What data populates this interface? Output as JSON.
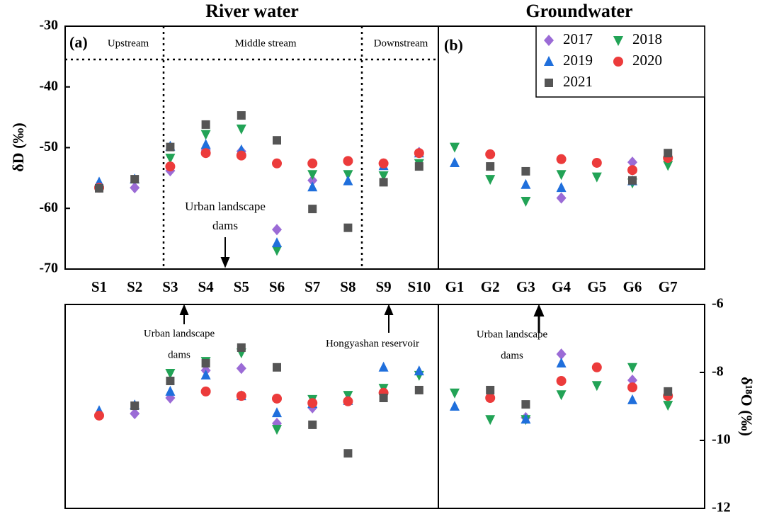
{
  "chart_data": [
    {
      "type": "scatter",
      "titles": [
        "River water",
        "Groundwater"
      ],
      "panel_labels": [
        "(a)",
        "(b)"
      ],
      "regions": [
        "Upstream",
        "Middle stream",
        "Downstream"
      ],
      "annotations": [
        [
          "Urban landscape",
          "dams"
        ]
      ],
      "ylabel": "δD (‰)",
      "categories": [
        "S1",
        "S2",
        "S3",
        "S4",
        "S5",
        "S6",
        "S7",
        "S8",
        "S9",
        "S10",
        "G1",
        "G2",
        "G3",
        "G4",
        "G5",
        "G6",
        "G7"
      ],
      "ylim": [
        -70,
        -30
      ],
      "yticks": [
        -70,
        -60,
        -50,
        -40,
        -30
      ],
      "grid": false,
      "legend": "upper right",
      "series": [
        {
          "name": "2017",
          "color": "#9b6bd6",
          "marker": "diamond",
          "values": [
            null,
            -56.6,
            -53.8,
            -50.4,
            -50.6,
            -63.5,
            -55.4,
            null,
            -52.7,
            -50.8,
            null,
            null,
            null,
            -58.3,
            null,
            -52.4,
            -51.6
          ]
        },
        {
          "name": "2018",
          "color": "#22a356",
          "marker": "triangle-down",
          "values": [
            null,
            null,
            -51.7,
            -47.8,
            -46.9,
            -66.9,
            -54.4,
            -54.4,
            -54.6,
            -52.6,
            -49.9,
            -55.2,
            -58.8,
            -54.4,
            -54.8,
            -55.8,
            -52.9
          ]
        },
        {
          "name": "2019",
          "color": "#1f6fdc",
          "marker": "triangle-up",
          "values": [
            -55.7,
            -55.2,
            -49.8,
            -49.5,
            -50.4,
            -65.7,
            -56.5,
            -55.5,
            -53.0,
            -50.9,
            -52.5,
            null,
            -56.1,
            -56.6,
            null,
            -55.5,
            null
          ]
        },
        {
          "name": "2020",
          "color": "#ec3b3b",
          "marker": "circle",
          "values": [
            -56.6,
            null,
            -53.1,
            -50.9,
            -51.3,
            -52.6,
            -52.6,
            -52.2,
            -52.6,
            -50.9,
            null,
            -51.1,
            null,
            -51.9,
            -52.5,
            -53.7,
            -51.7
          ]
        },
        {
          "name": "2021",
          "color": "#555555",
          "marker": "square",
          "values": [
            -56.7,
            -55.2,
            -49.9,
            -46.2,
            -44.7,
            -48.8,
            -60.1,
            -63.2,
            -55.7,
            -53.1,
            null,
            -53.1,
            -53.9,
            null,
            null,
            -55.4,
            -50.9
          ]
        }
      ]
    },
    {
      "type": "scatter",
      "annotations": [
        [
          "Urban landscape",
          "dams"
        ],
        [
          "Hongyashan reservoir"
        ],
        [
          "Urban landscape",
          "dams"
        ]
      ],
      "ylabel": "δ¹⁸O (‰)",
      "ylim": [
        -12,
        -6
      ],
      "yticks": [
        -12,
        -10,
        -8,
        -6
      ],
      "grid": false,
      "series": [
        {
          "color": "#9b6bd6",
          "marker": "diamond",
          "values": [
            null,
            -9.21,
            -8.75,
            -7.94,
            -7.88,
            -9.5,
            -9.04,
            null,
            null,
            null,
            null,
            null,
            -9.33,
            -7.46,
            null,
            -8.23,
            null
          ]
        },
        {
          "color": "#22a356",
          "marker": "triangle-down",
          "values": [
            null,
            null,
            -8.02,
            -7.67,
            -7.42,
            -9.67,
            -8.79,
            -8.67,
            -8.46,
            -8.08,
            -8.6,
            -9.38,
            -9.38,
            -8.65,
            -8.38,
            -7.85,
            -8.96
          ]
        },
        {
          "color": "#1f6fdc",
          "marker": "triangle-up",
          "values": [
            -9.13,
            -8.96,
            -8.56,
            -8.08,
            -8.69,
            -9.19,
            -8.92,
            -8.83,
            -7.85,
            -7.96,
            -9.0,
            null,
            -9.38,
            -7.73,
            null,
            -8.81,
            null
          ]
        },
        {
          "color": "#ec3b3b",
          "marker": "circle",
          "values": [
            -9.27,
            null,
            null,
            -8.56,
            -8.69,
            -8.77,
            -8.9,
            -8.85,
            -8.6,
            null,
            null,
            -8.75,
            null,
            -8.25,
            -7.85,
            -8.44,
            -8.69
          ]
        },
        {
          "color": "#555555",
          "marker": "square",
          "values": [
            null,
            -8.98,
            -8.25,
            -7.73,
            -7.27,
            -7.85,
            -9.54,
            -10.38,
            -8.75,
            -8.52,
            null,
            -8.52,
            -8.94,
            null,
            null,
            null,
            -8.56
          ]
        }
      ]
    }
  ]
}
